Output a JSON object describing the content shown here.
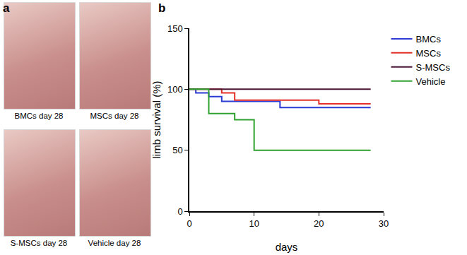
{
  "panel_labels": [
    "a",
    "b"
  ],
  "photos": [
    {
      "caption": "BMCs day 28"
    },
    {
      "caption": "MSCs day 28"
    },
    {
      "caption": "S-MSCs day 28"
    },
    {
      "caption": "Vehicle day 28"
    }
  ],
  "chart_data": {
    "type": "line",
    "line_style": "step",
    "x_label": "days",
    "y_label": "limb survival (%)",
    "xlim": [
      0,
      30
    ],
    "xticks": [
      0,
      10,
      20,
      30
    ],
    "ylim": [
      0,
      150
    ],
    "yticks": [
      0,
      50,
      100,
      150
    ],
    "grid": false,
    "legend": "upper right",
    "series": [
      {
        "name": "BMCs",
        "color": "#2b3bd4",
        "x": [
          0,
          1,
          3,
          5,
          14,
          28
        ],
        "values": [
          100,
          97,
          94,
          90,
          85,
          85
        ]
      },
      {
        "name": "MSCs",
        "color": "#e3302b",
        "x": [
          0,
          5,
          7,
          20,
          28
        ],
        "values": [
          100,
          97,
          91,
          88,
          88
        ]
      },
      {
        "name": "S-MSCs",
        "color": "#4a1636",
        "x": [
          0,
          28
        ],
        "values": [
          100,
          100
        ]
      },
      {
        "name": "Vehicle",
        "color": "#2ea12e",
        "x": [
          0,
          3,
          7,
          10,
          28
        ],
        "values": [
          100,
          80,
          75,
          50,
          50
        ]
      }
    ]
  }
}
